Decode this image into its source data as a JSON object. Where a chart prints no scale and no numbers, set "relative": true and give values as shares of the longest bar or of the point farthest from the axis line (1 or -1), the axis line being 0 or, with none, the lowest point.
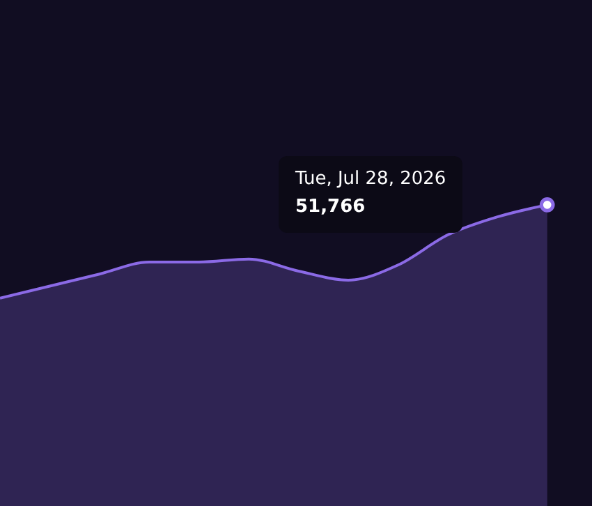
{
  "chart_data": {
    "type": "area",
    "relative": true,
    "categories": [
      null,
      null,
      null,
      null,
      null,
      null,
      null,
      null,
      null,
      null,
      null,
      null
    ],
    "series": [
      {
        "color": "#8b6ae6",
        "values": [
          0.69,
          0.73,
          0.77,
          0.81,
          0.81,
          0.82,
          0.78,
          0.75,
          0.8,
          0.9,
          0.96,
          1
        ]
      }
    ],
    "annotations": [
      "Tue, Jul 28, 2026",
      "51,766"
    ]
  }
}
